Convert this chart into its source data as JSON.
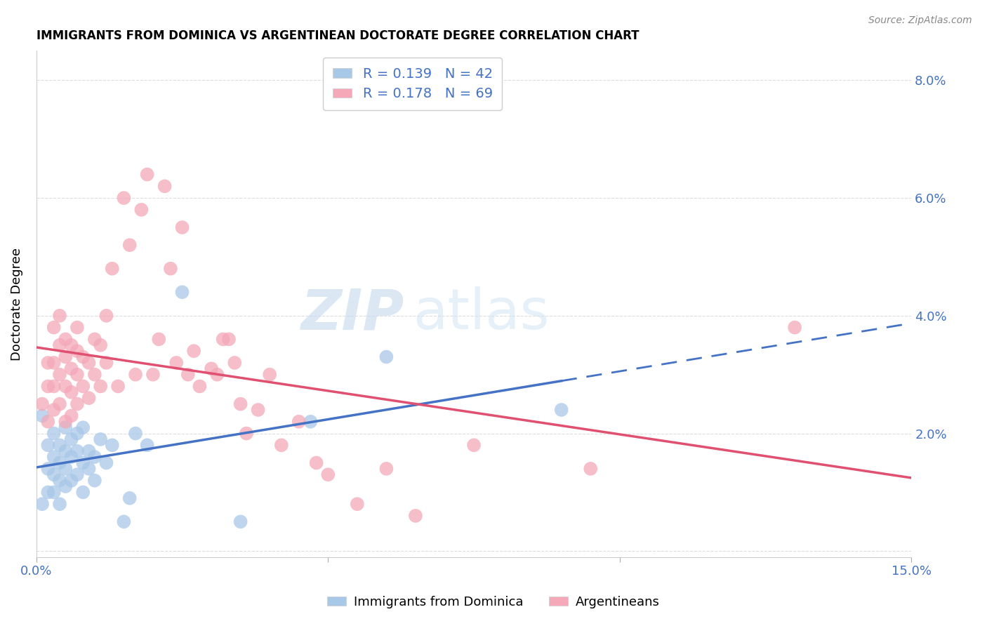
{
  "title": "IMMIGRANTS FROM DOMINICA VS ARGENTINEAN DOCTORATE DEGREE CORRELATION CHART",
  "source": "Source: ZipAtlas.com",
  "ylabel": "Doctorate Degree",
  "xlim": [
    0.0,
    0.15
  ],
  "ylim": [
    -0.001,
    0.085
  ],
  "blue_color": "#a8c8e8",
  "pink_color": "#f4a8b8",
  "blue_line_color": "#4472c4",
  "pink_line_color": "#e05070",
  "legend_text_color": "#4472c4",
  "watermark": "ZIPatlas",
  "R_blue": "0.139",
  "N_blue": "42",
  "R_pink": "0.178",
  "N_pink": "69",
  "blue_scatter": [
    [
      0.001,
      0.008
    ],
    [
      0.002,
      0.01
    ],
    [
      0.002,
      0.014
    ],
    [
      0.002,
      0.018
    ],
    [
      0.003,
      0.01
    ],
    [
      0.003,
      0.013
    ],
    [
      0.003,
      0.016
    ],
    [
      0.003,
      0.02
    ],
    [
      0.004,
      0.012
    ],
    [
      0.004,
      0.015
    ],
    [
      0.004,
      0.018
    ],
    [
      0.004,
      0.008
    ],
    [
      0.005,
      0.011
    ],
    [
      0.005,
      0.014
    ],
    [
      0.005,
      0.017
    ],
    [
      0.005,
      0.021
    ],
    [
      0.006,
      0.012
    ],
    [
      0.006,
      0.016
    ],
    [
      0.006,
      0.019
    ],
    [
      0.007,
      0.013
    ],
    [
      0.007,
      0.017
    ],
    [
      0.007,
      0.02
    ],
    [
      0.008,
      0.01
    ],
    [
      0.008,
      0.015
    ],
    [
      0.008,
      0.021
    ],
    [
      0.009,
      0.014
    ],
    [
      0.009,
      0.017
    ],
    [
      0.01,
      0.012
    ],
    [
      0.01,
      0.016
    ],
    [
      0.011,
      0.019
    ],
    [
      0.012,
      0.015
    ],
    [
      0.013,
      0.018
    ],
    [
      0.015,
      0.005
    ],
    [
      0.016,
      0.009
    ],
    [
      0.017,
      0.02
    ],
    [
      0.019,
      0.018
    ],
    [
      0.025,
      0.044
    ],
    [
      0.035,
      0.005
    ],
    [
      0.047,
      0.022
    ],
    [
      0.06,
      0.033
    ],
    [
      0.09,
      0.024
    ],
    [
      0.001,
      0.023
    ]
  ],
  "pink_scatter": [
    [
      0.001,
      0.025
    ],
    [
      0.002,
      0.022
    ],
    [
      0.002,
      0.028
    ],
    [
      0.002,
      0.032
    ],
    [
      0.003,
      0.024
    ],
    [
      0.003,
      0.028
    ],
    [
      0.003,
      0.032
    ],
    [
      0.003,
      0.038
    ],
    [
      0.004,
      0.025
    ],
    [
      0.004,
      0.03
    ],
    [
      0.004,
      0.035
    ],
    [
      0.004,
      0.04
    ],
    [
      0.005,
      0.022
    ],
    [
      0.005,
      0.028
    ],
    [
      0.005,
      0.033
    ],
    [
      0.005,
      0.036
    ],
    [
      0.006,
      0.023
    ],
    [
      0.006,
      0.027
    ],
    [
      0.006,
      0.031
    ],
    [
      0.006,
      0.035
    ],
    [
      0.007,
      0.025
    ],
    [
      0.007,
      0.03
    ],
    [
      0.007,
      0.034
    ],
    [
      0.007,
      0.038
    ],
    [
      0.008,
      0.028
    ],
    [
      0.008,
      0.033
    ],
    [
      0.009,
      0.026
    ],
    [
      0.009,
      0.032
    ],
    [
      0.01,
      0.03
    ],
    [
      0.01,
      0.036
    ],
    [
      0.011,
      0.028
    ],
    [
      0.011,
      0.035
    ],
    [
      0.012,
      0.032
    ],
    [
      0.012,
      0.04
    ],
    [
      0.013,
      0.048
    ],
    [
      0.014,
      0.028
    ],
    [
      0.015,
      0.06
    ],
    [
      0.016,
      0.052
    ],
    [
      0.017,
      0.03
    ],
    [
      0.018,
      0.058
    ],
    [
      0.019,
      0.064
    ],
    [
      0.02,
      0.03
    ],
    [
      0.021,
      0.036
    ],
    [
      0.022,
      0.062
    ],
    [
      0.023,
      0.048
    ],
    [
      0.024,
      0.032
    ],
    [
      0.025,
      0.055
    ],
    [
      0.026,
      0.03
    ],
    [
      0.027,
      0.034
    ],
    [
      0.028,
      0.028
    ],
    [
      0.03,
      0.031
    ],
    [
      0.031,
      0.03
    ],
    [
      0.032,
      0.036
    ],
    [
      0.033,
      0.036
    ],
    [
      0.034,
      0.032
    ],
    [
      0.035,
      0.025
    ],
    [
      0.036,
      0.02
    ],
    [
      0.038,
      0.024
    ],
    [
      0.04,
      0.03
    ],
    [
      0.042,
      0.018
    ],
    [
      0.045,
      0.022
    ],
    [
      0.048,
      0.015
    ],
    [
      0.05,
      0.013
    ],
    [
      0.055,
      0.008
    ],
    [
      0.06,
      0.014
    ],
    [
      0.065,
      0.006
    ],
    [
      0.075,
      0.018
    ],
    [
      0.095,
      0.014
    ],
    [
      0.13,
      0.038
    ]
  ],
  "background_color": "#ffffff",
  "grid_color": "#dddddd"
}
